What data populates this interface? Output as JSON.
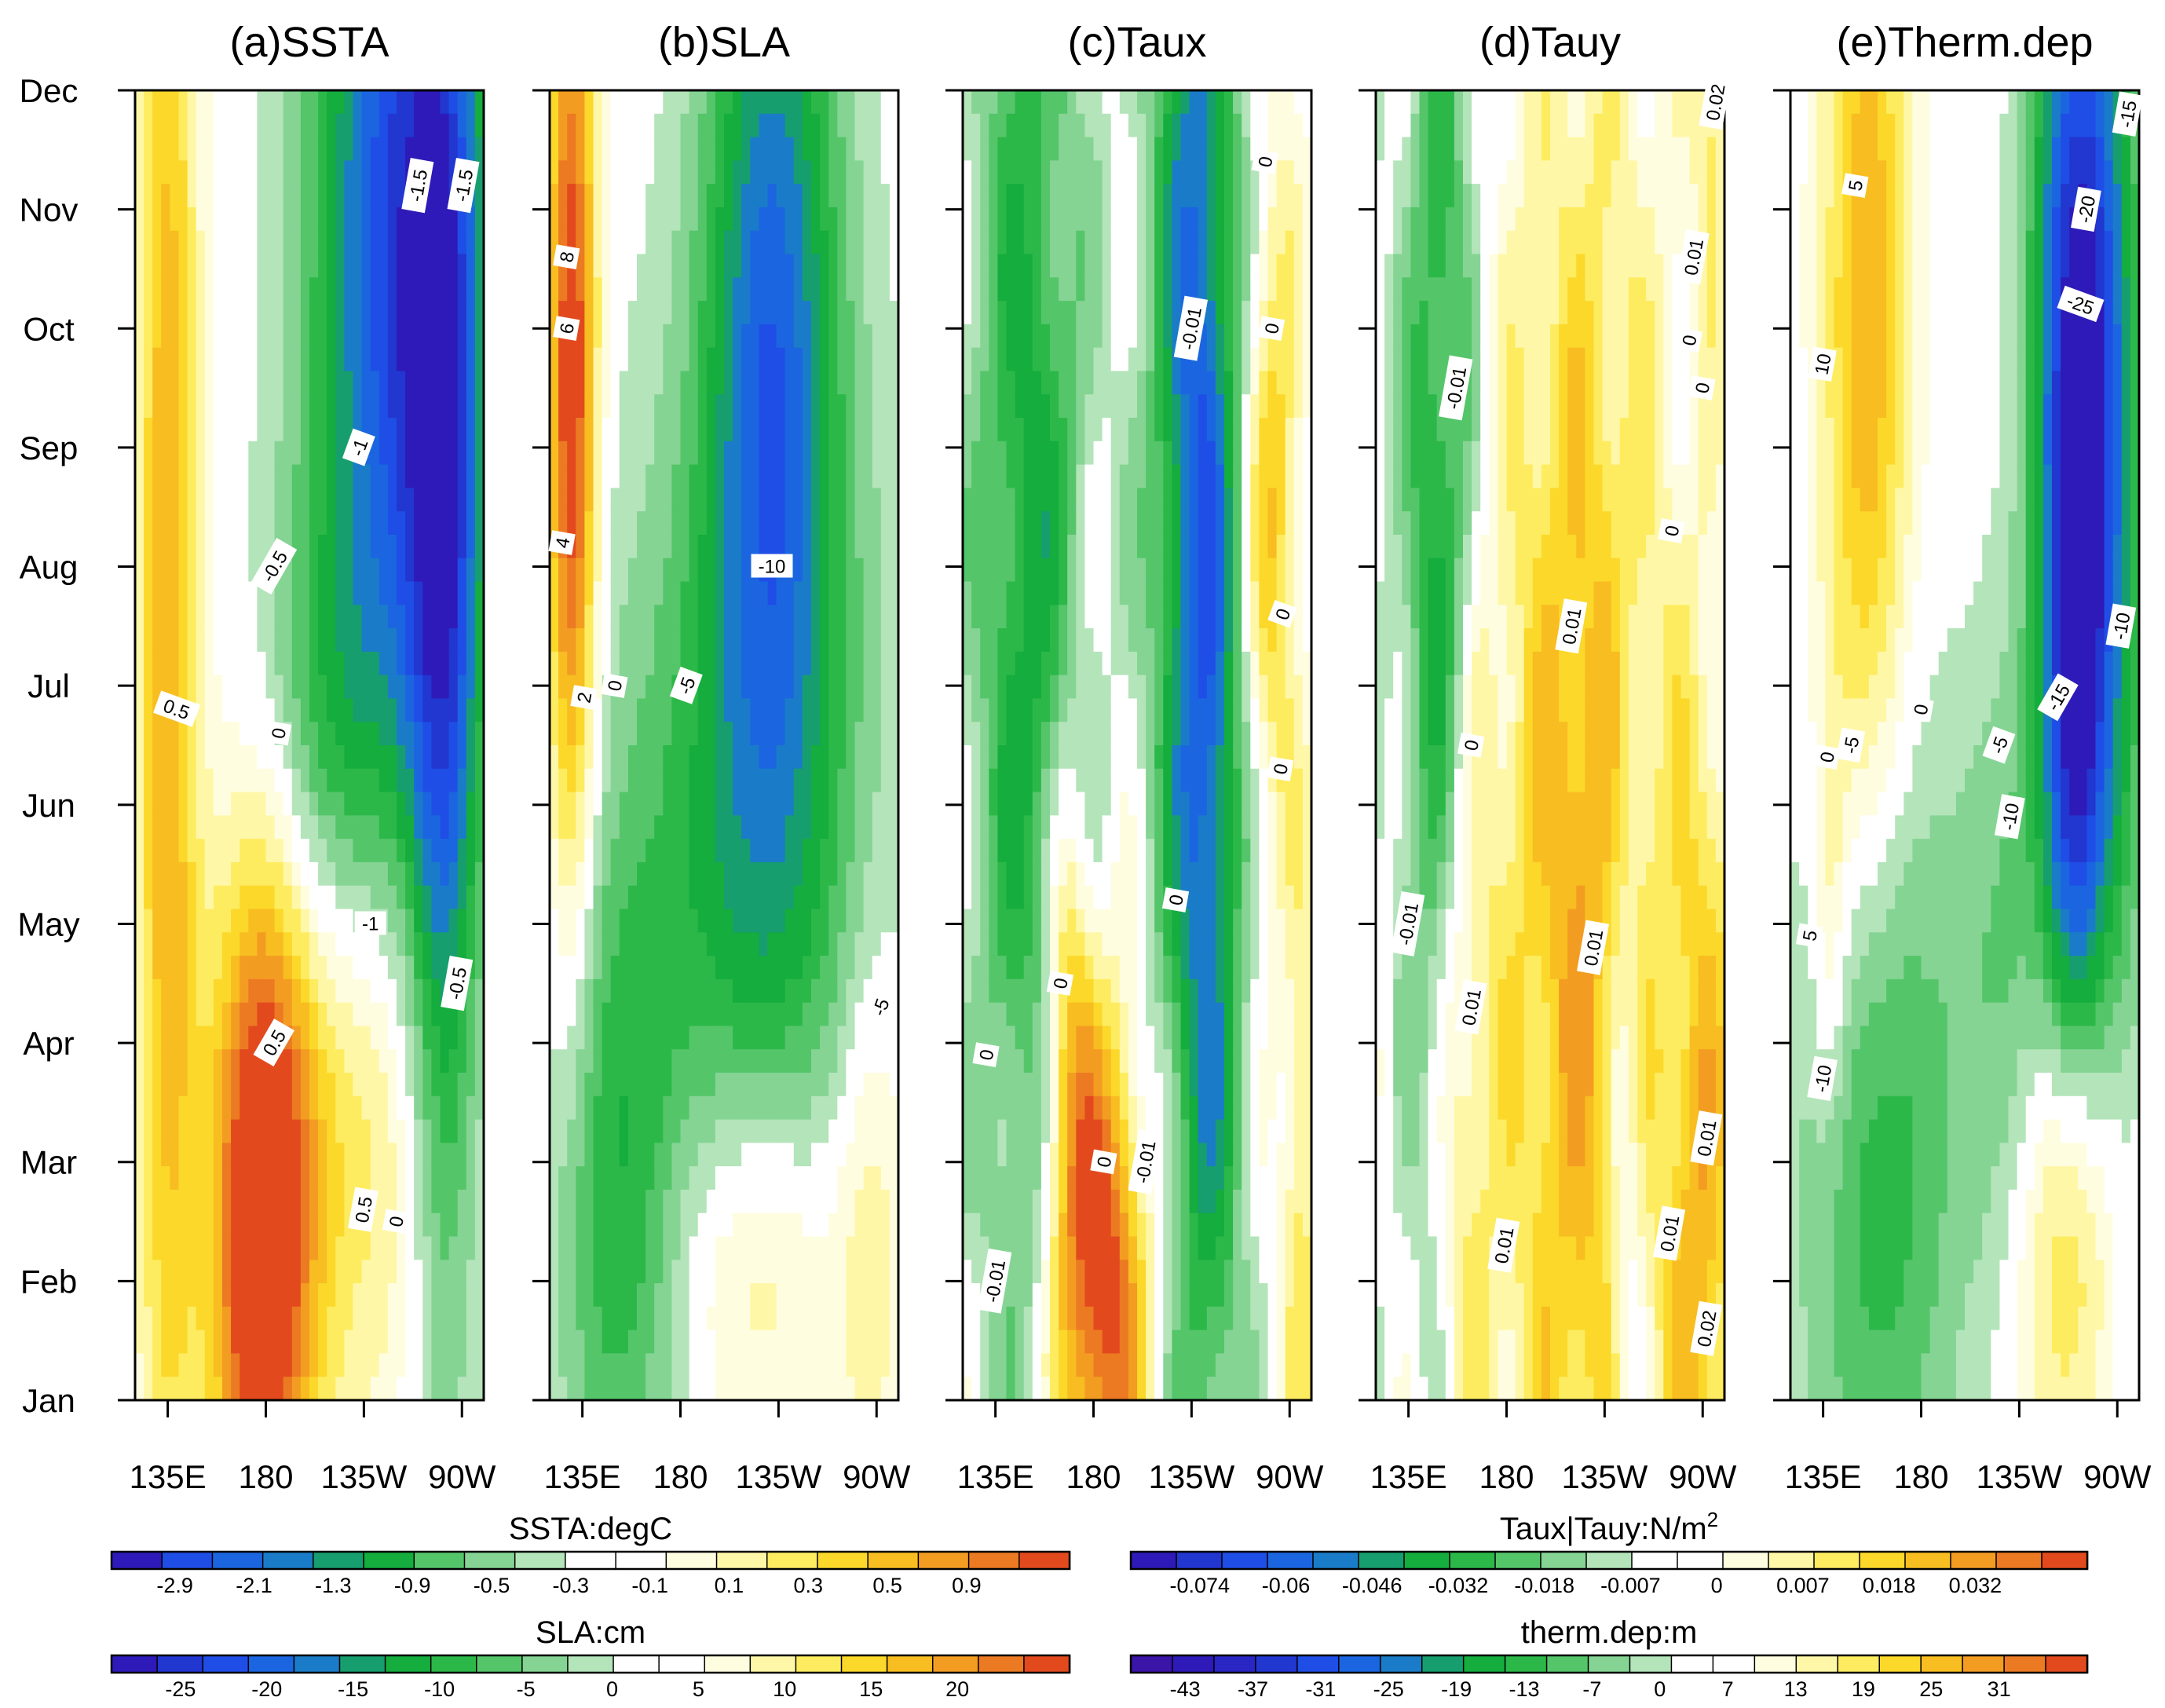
{
  "chart_data": {
    "type": "heatmap",
    "description_axes": {
      "y_ticks": [
        "Jan",
        "Feb",
        "Mar",
        "Apr",
        "May",
        "Jun",
        "Jul",
        "Aug",
        "Sep",
        "Oct",
        "Nov",
        "Dec"
      ],
      "x_ticks": [
        "135E",
        "180",
        "135W",
        "90W"
      ],
      "x_tick_lons": [
        135,
        180,
        225,
        270
      ],
      "x_range": [
        120,
        280
      ]
    },
    "panels": [
      {
        "id": "a",
        "title": "(a)SSTA",
        "scale": "ssta",
        "contour_labels": [
          {
            "text": "-1.5",
            "lon": 250,
            "month": 10.2,
            "rot": -80
          },
          {
            "text": "-1.5",
            "lon": 271,
            "month": 10.2,
            "rot": -80
          },
          {
            "text": "-1",
            "lon": 223,
            "month": 8.0,
            "rot": -70
          },
          {
            "text": "-0.5",
            "lon": 184,
            "month": 7.0,
            "rot": -60
          },
          {
            "text": "0.5",
            "lon": 139,
            "month": 5.8,
            "rot": 20
          },
          {
            "text": "0",
            "lon": 186,
            "month": 5.6,
            "rot": -80
          },
          {
            "text": "-1",
            "lon": 228,
            "month": 4.0,
            "rot": 0
          },
          {
            "text": "-0.5",
            "lon": 268,
            "month": 3.5,
            "rot": -80
          },
          {
            "text": "0.5",
            "lon": 184,
            "month": 3.0,
            "rot": -60
          },
          {
            "text": "0.5",
            "lon": 225,
            "month": 1.6,
            "rot": -80
          },
          {
            "text": "0",
            "lon": 240,
            "month": 1.5,
            "rot": -80
          }
        ]
      },
      {
        "id": "b",
        "title": "(b)SLA",
        "scale": "sla",
        "contour_labels": [
          {
            "text": "8",
            "lon": 128,
            "month": 9.6,
            "rot": -80
          },
          {
            "text": "6",
            "lon": 128,
            "month": 9.0,
            "rot": -80
          },
          {
            "text": "4",
            "lon": 126,
            "month": 7.2,
            "rot": -80
          },
          {
            "text": "-10",
            "lon": 222,
            "month": 7.0,
            "rot": 0
          },
          {
            "text": "-5",
            "lon": 183,
            "month": 6.0,
            "rot": -70
          },
          {
            "text": "2",
            "lon": 136,
            "month": 5.9,
            "rot": -80
          },
          {
            "text": "0",
            "lon": 150,
            "month": 6.0,
            "rot": -80
          },
          {
            "text": "-5",
            "lon": 272,
            "month": 3.3,
            "rot": -70
          }
        ]
      },
      {
        "id": "c",
        "title": "(c)Taux",
        "scale": "tau",
        "contour_labels": [
          {
            "text": "0",
            "lon": 259,
            "month": 10.4,
            "rot": -80
          },
          {
            "text": "-0.01",
            "lon": 225,
            "month": 9.0,
            "rot": -80
          },
          {
            "text": "0",
            "lon": 262,
            "month": 9.0,
            "rot": -80
          },
          {
            "text": "0",
            "lon": 267,
            "month": 6.6,
            "rot": -70
          },
          {
            "text": "0",
            "lon": 266,
            "month": 5.3,
            "rot": -80
          },
          {
            "text": "0",
            "lon": 218,
            "month": 4.2,
            "rot": -80
          },
          {
            "text": "0",
            "lon": 165,
            "month": 3.5,
            "rot": -80
          },
          {
            "text": "0",
            "lon": 131,
            "month": 2.9,
            "rot": -80
          },
          {
            "text": "0",
            "lon": 185,
            "month": 2.0,
            "rot": -80
          },
          {
            "text": "-0.01",
            "lon": 204,
            "month": 2.0,
            "rot": -80
          },
          {
            "text": "-0.01",
            "lon": 135,
            "month": 1.0,
            "rot": -80
          }
        ]
      },
      {
        "id": "d",
        "title": "(d)Tauy",
        "scale": "tau",
        "contour_labels": [
          {
            "text": "0.02",
            "lon": 276,
            "month": 10.9,
            "rot": -80
          },
          {
            "text": "0.01",
            "lon": 266,
            "month": 9.6,
            "rot": -80
          },
          {
            "text": "-0.01",
            "lon": 157,
            "month": 8.5,
            "rot": -80
          },
          {
            "text": "0",
            "lon": 264,
            "month": 8.9,
            "rot": -80
          },
          {
            "text": "0",
            "lon": 270,
            "month": 8.5,
            "rot": -80
          },
          {
            "text": "0",
            "lon": 256,
            "month": 7.3,
            "rot": -80
          },
          {
            "text": "0.01",
            "lon": 210,
            "month": 6.5,
            "rot": -80
          },
          {
            "text": "0",
            "lon": 164,
            "month": 5.5,
            "rot": -80
          },
          {
            "text": "-0.01",
            "lon": 135,
            "month": 4.0,
            "rot": -80
          },
          {
            "text": "0.01",
            "lon": 220,
            "month": 3.8,
            "rot": -80
          },
          {
            "text": "0.01",
            "lon": 164,
            "month": 3.3,
            "rot": -80
          },
          {
            "text": "0.01",
            "lon": 272,
            "month": 2.2,
            "rot": -80
          },
          {
            "text": "0.01",
            "lon": 255,
            "month": 1.4,
            "rot": -80
          },
          {
            "text": "0.01",
            "lon": 179,
            "month": 1.3,
            "rot": -80
          },
          {
            "text": "0.02",
            "lon": 272,
            "month": 0.6,
            "rot": -80
          }
        ]
      },
      {
        "id": "e",
        "title": "(e)Therm.dep",
        "scale": "therm",
        "contour_labels": [
          {
            "text": "5",
            "lon": 150,
            "month": 10.2,
            "rot": -80
          },
          {
            "text": "-15",
            "lon": 275,
            "month": 10.8,
            "rot": -80
          },
          {
            "text": "-20",
            "lon": 256,
            "month": 10.0,
            "rot": -80
          },
          {
            "text": "-25",
            "lon": 253,
            "month": 9.2,
            "rot": 20
          },
          {
            "text": "10",
            "lon": 135,
            "month": 8.7,
            "rot": -80
          },
          {
            "text": "-10",
            "lon": 272,
            "month": 6.5,
            "rot": -80
          },
          {
            "text": "0",
            "lon": 180,
            "month": 5.8,
            "rot": -80
          },
          {
            "text": "-5",
            "lon": 148,
            "month": 5.5,
            "rot": -80
          },
          {
            "text": "-5",
            "lon": 216,
            "month": 5.5,
            "rot": -70
          },
          {
            "text": "-15",
            "lon": 243,
            "month": 5.9,
            "rot": -60
          },
          {
            "text": "0",
            "lon": 137,
            "month": 5.4,
            "rot": -80
          },
          {
            "text": "-10",
            "lon": 221,
            "month": 4.9,
            "rot": -80
          },
          {
            "text": "5",
            "lon": 129,
            "month": 3.9,
            "rot": -80
          },
          {
            "text": "-10",
            "lon": 135,
            "month": 2.7,
            "rot": -80
          }
        ]
      }
    ],
    "colorbars": [
      {
        "id": "ssta",
        "title": "SSTA:degC",
        "ticks": [
          "-2.9",
          "-2.1",
          "-1.3",
          "-0.9",
          "-0.5",
          "-0.3",
          "-0.1",
          "0.1",
          "0.3",
          "0.5",
          "0.9"
        ]
      },
      {
        "id": "tau",
        "title": "Taux|Tauy:N/m",
        "title_sup": "2",
        "ticks": [
          "-0.074",
          "-0.06",
          "-0.046",
          "-0.032",
          "-0.018",
          "-0.007",
          "0",
          "0.007",
          "0.018",
          "0.032"
        ]
      },
      {
        "id": "sla",
        "title": "SLA:cm",
        "ticks": [
          "-25",
          "-20",
          "-15",
          "-10",
          "-5",
          "0",
          "5",
          "10",
          "15",
          "20"
        ]
      },
      {
        "id": "therm",
        "title": "therm.dep:m",
        "ticks": [
          "-43",
          "-37",
          "-31",
          "-25",
          "-19",
          "-13",
          "-7",
          "0",
          "7",
          "13",
          "19",
          "25",
          "31"
        ]
      }
    ],
    "colors": {
      "palette": [
        "#2e1ab8",
        "#2236d0",
        "#1f4ee6",
        "#1b66e0",
        "#1a7cc8",
        "#179e6e",
        "#14ad3e",
        "#2cb848",
        "#55c56a",
        "#85d494",
        "#b4e4ba",
        "#ffffff",
        "#fffde0",
        "#fff7a8",
        "#fdec60",
        "#fbd82a",
        "#f8bd20",
        "#f39c22",
        "#ec7a22",
        "#e24a1e"
      ]
    }
  }
}
